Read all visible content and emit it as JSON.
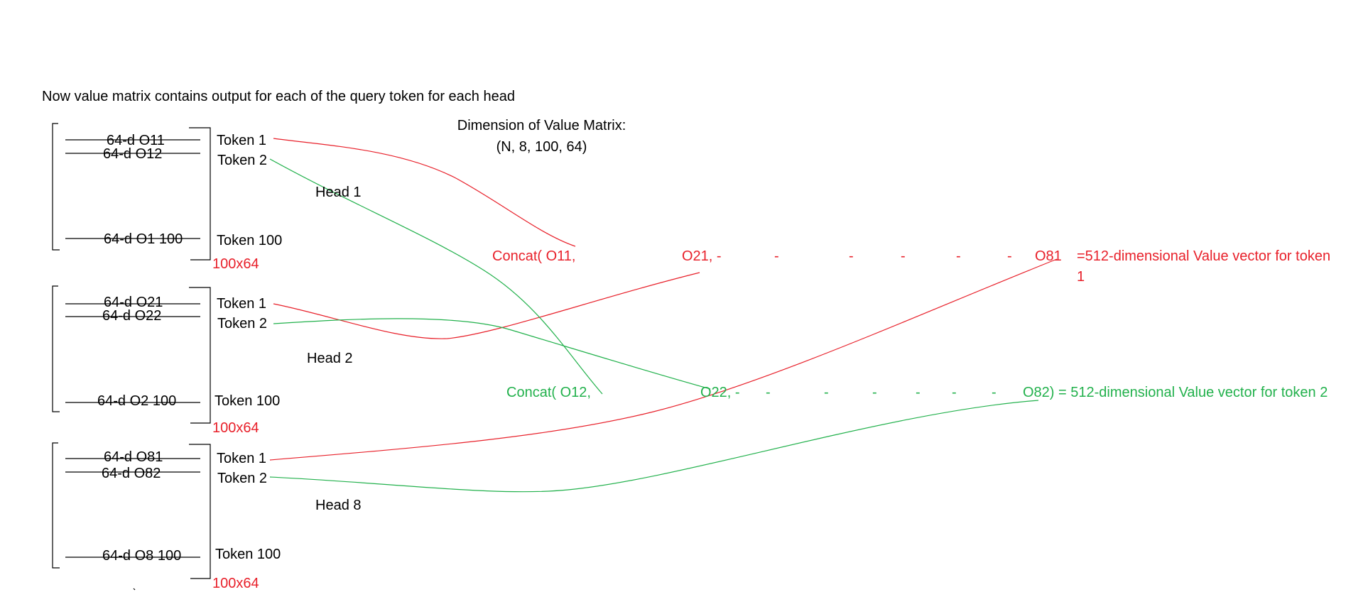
{
  "colors": {
    "ink": "#000000",
    "red": "#e8202a",
    "green": "#22b14c"
  },
  "title": "Now value matrix contains output for each of the query token for each head",
  "dimension": {
    "line1": "Dimension of Value Matrix:",
    "line2": "(N, 8, 100, 64)"
  },
  "heads": [
    {
      "label": "Head 1",
      "rows": [
        "64-d O11",
        "64-d O12",
        "64-d O1 100"
      ],
      "tokens": [
        "Token 1",
        "Token 2",
        "Token 100"
      ],
      "size": "100x64"
    },
    {
      "label": "Head 2",
      "rows": [
        "64-d O21",
        "64-d O22",
        "64-d O2 100"
      ],
      "tokens": [
        "Token 1",
        "Token 2",
        "Token 100"
      ],
      "size": "100x64"
    },
    {
      "label": "Head 8",
      "rows": [
        "64-d O81",
        "64-d O82",
        "64-d O8 100"
      ],
      "tokens": [
        "Token 1",
        "Token 2",
        "Token 100"
      ],
      "size": "100x64"
    }
  ],
  "concat_token1": {
    "start": "Concat(   O11,",
    "mid": "O21, -",
    "dashes": [
      "-",
      "-",
      "-",
      "-",
      "-"
    ],
    "end": "O81",
    "result_line1": "=512-dimensional  Value vector for token",
    "result_line2": "1"
  },
  "concat_token2": {
    "start": "Concat( O12,",
    "mid": "O22, -",
    "dashes": [
      "-",
      "-",
      "-",
      "-",
      "-",
      "-",
      "-"
    ],
    "end": "O82) = 512-dimensional Value vector for token 2"
  }
}
